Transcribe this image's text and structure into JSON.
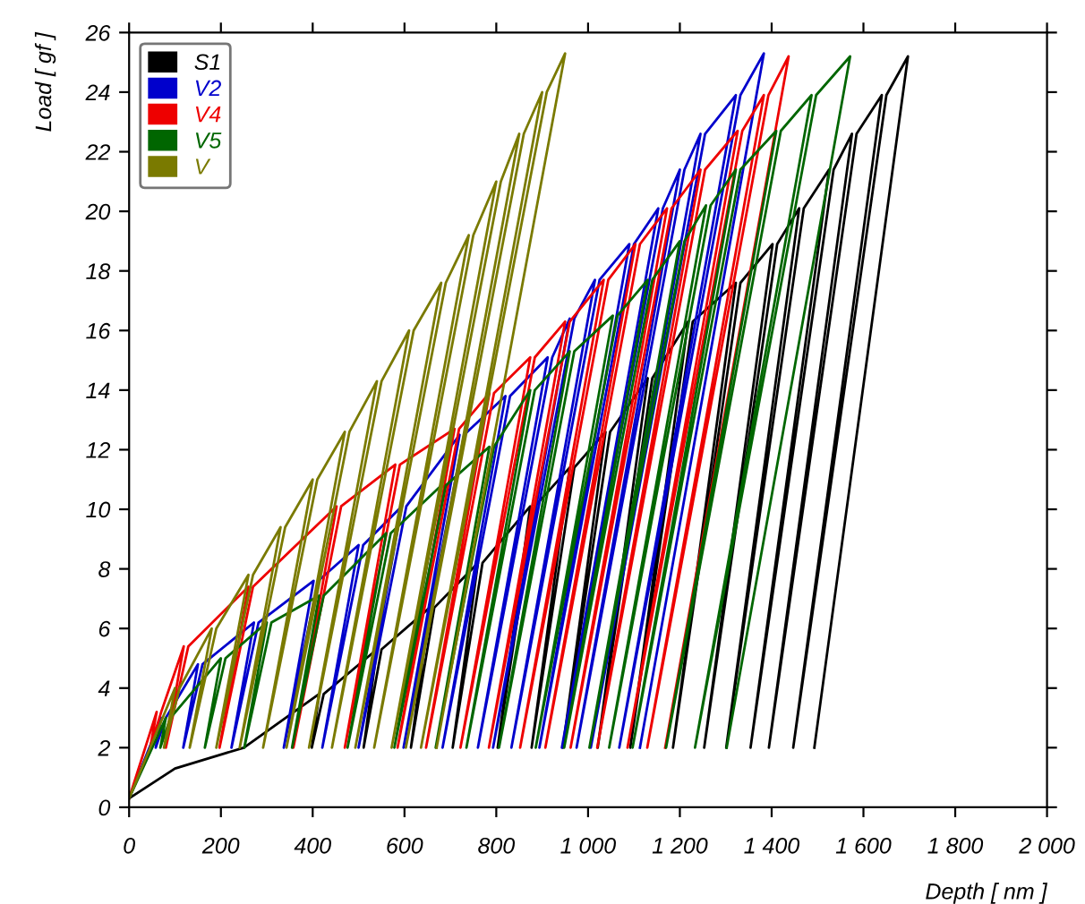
{
  "chart_data": {
    "type": "line",
    "xlabel": "Depth [ nm ]",
    "ylabel": "Load [ gf ]",
    "xlim": [
      0,
      2000
    ],
    "ylim": [
      0,
      26
    ],
    "xticks": [
      0,
      200,
      400,
      600,
      800,
      {
        "value": 1000,
        "label": "1 000"
      },
      {
        "value": 1200,
        "label": "1 200"
      },
      {
        "value": 1400,
        "label": "1 400"
      },
      {
        "value": 1600,
        "label": "1 600"
      },
      {
        "value": 1800,
        "label": "1 800"
      },
      {
        "value": 2000,
        "label": "2 000"
      }
    ],
    "yticks": [
      0,
      2,
      4,
      6,
      8,
      10,
      12,
      14,
      16,
      18,
      20,
      22,
      24,
      26
    ],
    "grid": false,
    "legend": "top left",
    "marker": "none",
    "line_style": "solid",
    "series": [
      {
        "name": "S1",
        "color": "#000000",
        "x": [
          0,
          100,
          250,
          414,
          398,
          424,
          540,
          511,
          550,
          655,
          614,
          665,
          760,
          705,
          770,
          874,
          803,
          884,
          960,
          877,
          970,
          1038,
          945,
          1048,
          1130,
          1021,
          1140,
          1218,
          1092,
          1228,
          1322,
          1185,
          1332,
          1402,
          1253,
          1412,
          1460,
          1301,
          1470,
          1525,
          1354,
          1535,
          1575,
          1394,
          1585,
          1640,
          1447,
          1650,
          1697,
          1493
        ],
        "values": [
          0.3,
          1.3,
          2.0,
          3.8,
          2,
          3.8,
          5.3,
          2,
          5.3,
          6.7,
          2,
          6.7,
          8.2,
          2,
          8.2,
          10.1,
          2,
          10.1,
          11.4,
          2,
          11.4,
          12.6,
          2,
          12.6,
          14.4,
          2,
          14.4,
          16.3,
          2,
          16.3,
          17.6,
          2,
          17.6,
          18.9,
          2,
          18.9,
          20.1,
          2,
          20.1,
          21.4,
          2,
          21.4,
          22.6,
          2,
          22.6,
          23.9,
          2,
          23.9,
          25.2,
          2
        ]
      },
      {
        "name": "V2",
        "color": "#0000cc",
        "x": [
          0,
          70,
          58,
          80,
          150,
          118,
          160,
          272,
          223,
          282,
          402,
          337,
          412,
          500,
          421,
          510,
          594,
          500,
          604,
          720,
          598,
          730,
          820,
          683,
          830,
          912,
          760,
          922,
          960,
          793,
          970,
          1015,
          833,
          1025,
          1090,
          894,
          1100,
          1153,
          943,
          1163,
          1200,
          975,
          1210,
          1245,
          1006,
          1255,
          1322,
          1068,
          1332,
          1383,
          1113
        ],
        "values": [
          0.3,
          3.0,
          2,
          3.0,
          4.8,
          2,
          4.8,
          6.2,
          2,
          6.2,
          7.6,
          2,
          7.6,
          8.8,
          2,
          8.8,
          10.1,
          2,
          10.1,
          12.5,
          2,
          12.5,
          13.8,
          2,
          13.8,
          15.1,
          2,
          15.1,
          16.4,
          2,
          16.4,
          17.7,
          2,
          17.7,
          18.9,
          2,
          18.9,
          20.1,
          2,
          20.1,
          21.4,
          2,
          21.4,
          22.6,
          2,
          22.6,
          23.9,
          2,
          23.9,
          25.3,
          2
        ]
      },
      {
        "name": "V4",
        "color": "#ee0000",
        "x": [
          0,
          60,
          46,
          70,
          119,
          80,
          129,
          260,
          197,
          270,
          452,
          358,
          462,
          580,
          470,
          590,
          709,
          585,
          719,
          785,
          647,
          795,
          874,
          722,
          884,
          950,
          784,
          960,
          1034,
          852,
          1044,
          1103,
          907,
          1113,
          1172,
          962,
          1182,
          1245,
          1020,
          1255,
          1326,
          1086,
          1336,
          1383,
          1129,
          1393,
          1437,
          1168
        ],
        "values": [
          0.3,
          3.2,
          2,
          3.2,
          5.4,
          2,
          5.4,
          7.4,
          2,
          7.4,
          10.1,
          2,
          10.1,
          11.5,
          2,
          11.5,
          12.7,
          2,
          12.7,
          13.9,
          2,
          13.9,
          15.1,
          2,
          15.1,
          16.3,
          2,
          16.3,
          17.7,
          2,
          17.7,
          18.9,
          2,
          18.9,
          20.1,
          2,
          20.1,
          21.4,
          2,
          21.4,
          22.7,
          2,
          22.7,
          23.9,
          2,
          23.9,
          25.2,
          2
        ]
      },
      {
        "name": "V5",
        "color": "#006600",
        "x": [
          0,
          80,
          68,
          90,
          200,
          165,
          210,
          300,
          251,
          310,
          414,
          355,
          424,
          560,
          476,
          570,
          680,
          578,
          690,
          785,
          668,
          795,
          874,
          735,
          884,
          960,
          806,
          970,
          1054,
          886,
          1064,
          1130,
          948,
          1140,
          1200,
          1003,
          1210,
          1257,
          1046,
          1267,
          1322,
          1097,
          1332,
          1410,
          1170,
          1420,
          1487,
          1233,
          1497,
          1571,
          1302
        ],
        "values": [
          0.3,
          3.0,
          2,
          3.0,
          5.0,
          2,
          5.0,
          6.2,
          2,
          6.2,
          7.1,
          2,
          7.1,
          9.2,
          2,
          9.2,
          10.8,
          2,
          10.8,
          12.1,
          2,
          12.1,
          14.0,
          2,
          14.0,
          15.3,
          2,
          15.3,
          16.5,
          2,
          16.5,
          17.7,
          2,
          17.7,
          19.0,
          2,
          19.0,
          20.2,
          2,
          20.2,
          21.4,
          2,
          21.4,
          22.7,
          2,
          22.7,
          23.9,
          2,
          23.9,
          25.2,
          2
        ]
      },
      {
        "name": "V",
        "color": "#7a7a00",
        "x": [
          0,
          100,
          76,
          110,
          180,
          132,
          190,
          260,
          190,
          270,
          330,
          241,
          340,
          400,
          292,
          410,
          470,
          343,
          480,
          540,
          392,
          550,
          610,
          442,
          620,
          680,
          493,
          690,
          740,
          534,
          750,
          800,
          572,
          810,
          850,
          603,
          860,
          900,
          636,
          910,
          950,
          670
        ],
        "values": [
          0.3,
          4,
          2,
          4,
          6,
          2,
          6,
          7.8,
          2,
          7.8,
          9.4,
          2,
          9.4,
          11,
          2,
          11,
          12.6,
          2,
          12.6,
          14.3,
          2,
          14.3,
          16,
          2,
          16,
          17.6,
          2,
          17.6,
          19.2,
          2,
          19.2,
          21,
          2,
          21,
          22.6,
          2,
          22.6,
          24,
          2,
          24,
          25.3,
          2
        ]
      }
    ]
  }
}
